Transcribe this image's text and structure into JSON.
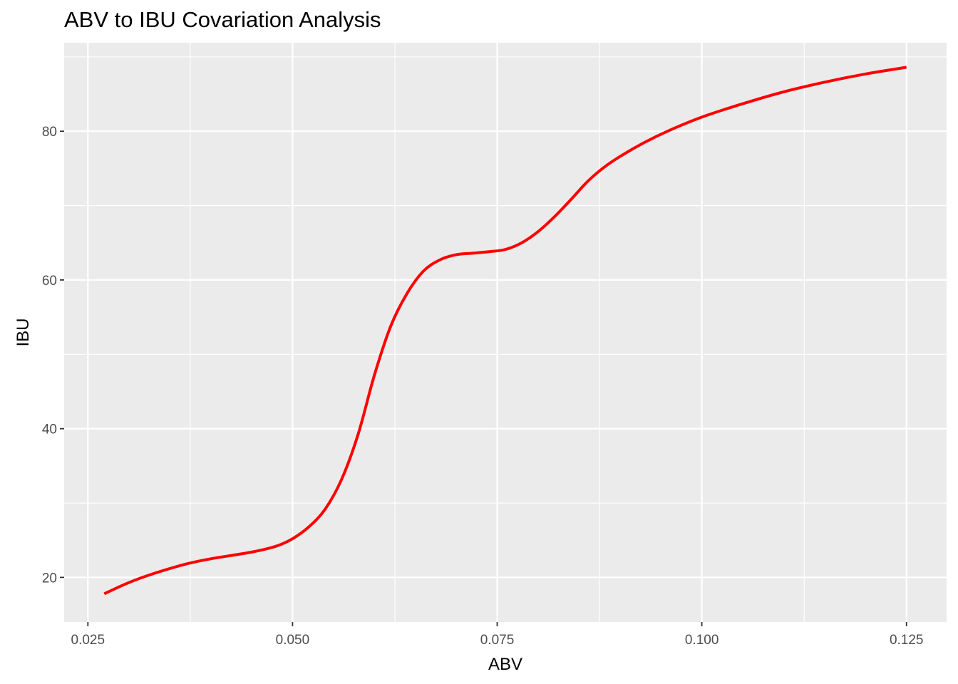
{
  "chart_data": {
    "type": "line",
    "title": "ABV to IBU Covariation Analysis",
    "xlabel": "ABV",
    "ylabel": "IBU",
    "xlim": [
      0.0221,
      0.1299
    ],
    "ylim": [
      14.0,
      91.9
    ],
    "x_ticks": [
      0.025,
      0.05,
      0.075,
      0.1,
      0.125
    ],
    "x_tick_labels": [
      "0.025",
      "0.050",
      "0.075",
      "0.100",
      "0.125"
    ],
    "y_ticks": [
      20,
      40,
      60,
      80
    ],
    "y_tick_labels": [
      "20",
      "40",
      "60",
      "80"
    ],
    "grid": true,
    "panel_background": "#EBEBEB",
    "grid_color": "#FFFFFF",
    "series": [
      {
        "color": "#FF0000",
        "x": [
          0.027,
          0.03,
          0.033,
          0.037,
          0.04,
          0.045,
          0.048,
          0.05,
          0.052,
          0.054,
          0.056,
          0.058,
          0.06,
          0.062,
          0.064,
          0.066,
          0.068,
          0.07,
          0.072,
          0.074,
          0.076,
          0.078,
          0.08,
          0.082,
          0.084,
          0.086,
          0.088,
          0.09,
          0.093,
          0.096,
          0.1,
          0.105,
          0.11,
          0.115,
          0.12,
          0.125
        ],
        "y": [
          17.8,
          19.3,
          20.5,
          21.8,
          22.5,
          23.4,
          24.2,
          25.2,
          26.8,
          29.2,
          33.2,
          39.2,
          47.2,
          53.8,
          58.2,
          61.2,
          62.7,
          63.4,
          63.6,
          63.8,
          64.1,
          65.0,
          66.5,
          68.5,
          70.8,
          73.2,
          75.1,
          76.6,
          78.5,
          80.1,
          81.9,
          83.7,
          85.3,
          86.6,
          87.7,
          88.6
        ]
      }
    ]
  }
}
